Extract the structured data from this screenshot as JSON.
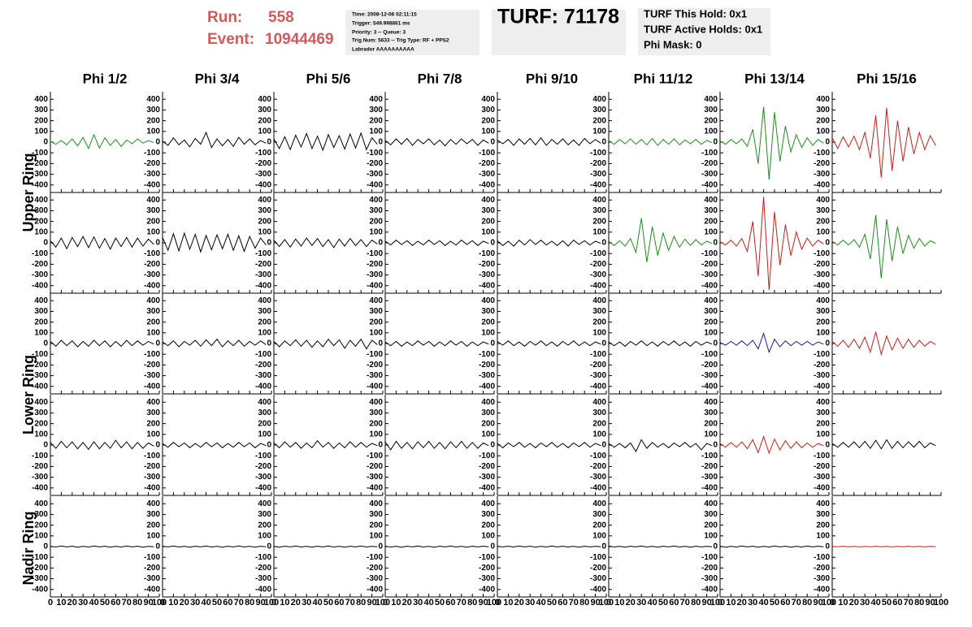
{
  "header": {
    "run_label": "Run:",
    "run": "558",
    "event_label": "Event:",
    "event": "10944469",
    "info": [
      "Time: 2008-12-06 02:11:15",
      "Trigger: 549.998861 ms",
      "Priority: 3 -- Queue: 3",
      "Trig Num: 5633 -- Trig Type: RF + PPS2",
      "Labrador AAAAAAAAAA"
    ],
    "turf": "TURF: 71178",
    "turf_info": [
      "TURF This Hold: 0x1",
      "TURF Active Holds: 0x1",
      "Phi Mask: 0"
    ]
  },
  "columns": [
    "Phi 1/2",
    "Phi 3/4",
    "Phi 5/6",
    "Phi 7/8",
    "Phi 9/10",
    "Phi 11/12",
    "Phi 13/14",
    "Phi 15/16"
  ],
  "rows": [
    "Upper Ring",
    "Lower Ring",
    "Nadir Ring"
  ],
  "axes": {
    "x": [
      0,
      5,
      10,
      15,
      20,
      25,
      30,
      35,
      40,
      45,
      50,
      55,
      60,
      65,
      70,
      75,
      80,
      85,
      90,
      95
    ],
    "xlim": [
      0,
      100
    ],
    "xticks": [
      0,
      10,
      20,
      30,
      40,
      50,
      60,
      70,
      80,
      90,
      100
    ],
    "ylim": [
      -470,
      470
    ],
    "yticks": [
      400,
      300,
      200,
      100,
      0,
      -100,
      -200,
      -300,
      -400
    ]
  },
  "chart_data": [
    {
      "type": "line",
      "color": "#1e8c1e",
      "values": [
        5,
        -20,
        15,
        -25,
        30,
        -35,
        45,
        -60,
        70,
        -55,
        40,
        -30,
        25,
        -40,
        20,
        -15,
        30,
        -10,
        15,
        -5
      ]
    },
    {
      "type": "line",
      "color": "#000000",
      "values": [
        10,
        -30,
        40,
        -25,
        20,
        -45,
        35,
        -20,
        90,
        -50,
        30,
        -35,
        25,
        -40,
        45,
        -20,
        30,
        -25,
        15,
        -10
      ]
    },
    {
      "type": "line",
      "color": "#000000",
      "values": [
        30,
        -60,
        50,
        -70,
        65,
        -45,
        80,
        -60,
        55,
        -75,
        70,
        -50,
        60,
        -65,
        75,
        -55,
        85,
        -70,
        40,
        -20
      ]
    },
    {
      "type": "line",
      "color": "#000000",
      "values": [
        15,
        -25,
        30,
        -20,
        35,
        -30,
        25,
        -15,
        30,
        -25,
        20,
        -35,
        25,
        -20,
        30,
        -15,
        25,
        -30,
        20,
        -10
      ]
    },
    {
      "type": "line",
      "color": "#000000",
      "values": [
        20,
        -15,
        25,
        -30,
        30,
        -20,
        35,
        -25,
        40,
        -30,
        25,
        -20,
        30,
        -25,
        20,
        -30,
        35,
        -15,
        25,
        -10
      ]
    },
    {
      "type": "line",
      "color": "#1e8c1e",
      "values": [
        15,
        -20,
        25,
        -15,
        30,
        -20,
        25,
        -25,
        35,
        -30,
        25,
        -20,
        30,
        -25,
        20,
        -15,
        25,
        -20,
        15,
        -5
      ]
    },
    {
      "type": "line",
      "color": "#1e8c1e",
      "values": [
        10,
        -20,
        25,
        -15,
        30,
        -40,
        120,
        -200,
        330,
        -350,
        280,
        -180,
        150,
        -90,
        70,
        -50,
        40,
        -30,
        25,
        -10
      ]
    },
    {
      "type": "line",
      "color": "#c81e1e",
      "values": [
        40,
        -60,
        50,
        -45,
        55,
        -70,
        90,
        -150,
        250,
        -330,
        320,
        -270,
        200,
        -180,
        140,
        -110,
        90,
        -70,
        60,
        -30
      ]
    },
    {
      "type": "line",
      "color": "#000000",
      "values": [
        20,
        -40,
        45,
        -55,
        50,
        -35,
        60,
        -45,
        55,
        -50,
        40,
        -60,
        45,
        -35,
        50,
        -40,
        45,
        -30,
        35,
        -15
      ]
    },
    {
      "type": "line",
      "color": "#000000",
      "values": [
        50,
        -70,
        85,
        -75,
        90,
        -60,
        80,
        -85,
        70,
        -65,
        75,
        -55,
        80,
        -70,
        65,
        -80,
        60,
        -50,
        45,
        -20
      ]
    },
    {
      "type": "line",
      "color": "#000000",
      "values": [
        25,
        -35,
        30,
        -40,
        35,
        -30,
        45,
        -25,
        40,
        -35,
        30,
        -45,
        35,
        -30,
        40,
        -25,
        30,
        -35,
        25,
        -10
      ]
    },
    {
      "type": "line",
      "color": "#000000",
      "values": [
        15,
        -20,
        25,
        -15,
        20,
        -25,
        15,
        -20,
        25,
        -15,
        20,
        -25,
        15,
        -20,
        25,
        -15,
        20,
        -25,
        15,
        -5
      ]
    },
    {
      "type": "line",
      "color": "#000000",
      "values": [
        20,
        -25,
        15,
        -30,
        25,
        -20,
        30,
        -15,
        25,
        -20,
        15,
        -25,
        20,
        -30,
        25,
        -15,
        20,
        -20,
        15,
        -5
      ]
    },
    {
      "type": "line",
      "color": "#1e8c1e",
      "values": [
        15,
        -25,
        20,
        -30,
        40,
        -90,
        230,
        -180,
        150,
        -120,
        90,
        -70,
        60,
        -40,
        35,
        -25,
        30,
        -20,
        15,
        -5
      ]
    },
    {
      "type": "line",
      "color": "#c81e1e",
      "values": [
        10,
        -20,
        25,
        -30,
        40,
        -80,
        200,
        -310,
        430,
        -440,
        290,
        -210,
        170,
        -120,
        100,
        -60,
        45,
        -30,
        25,
        -10
      ]
    },
    {
      "type": "line",
      "color": "#1e8c1e",
      "values": [
        15,
        -20,
        25,
        -20,
        30,
        -40,
        80,
        -150,
        260,
        -330,
        220,
        -170,
        150,
        -100,
        70,
        -50,
        40,
        -30,
        20,
        -5
      ]
    },
    {
      "type": "line",
      "color": "#000000",
      "values": [
        20,
        -25,
        30,
        -20,
        25,
        -30,
        20,
        -25,
        30,
        -20,
        25,
        -30,
        20,
        -25,
        30,
        -20,
        25,
        -15,
        20,
        -5
      ]
    },
    {
      "type": "line",
      "color": "#000000",
      "values": [
        15,
        -20,
        25,
        -30,
        20,
        -15,
        30,
        -25,
        35,
        -20,
        40,
        -30,
        25,
        -20,
        30,
        -25,
        20,
        -15,
        25,
        -10
      ]
    },
    {
      "type": "line",
      "color": "#000000",
      "values": [
        20,
        -30,
        25,
        -20,
        35,
        -25,
        30,
        -35,
        25,
        -30,
        40,
        -20,
        35,
        -45,
        30,
        -25,
        40,
        -50,
        30,
        -10
      ]
    },
    {
      "type": "line",
      "color": "#000000",
      "values": [
        15,
        -20,
        20,
        -25,
        15,
        -20,
        25,
        -15,
        20,
        -25,
        15,
        -20,
        25,
        -15,
        20,
        -25,
        15,
        -20,
        15,
        -5
      ]
    },
    {
      "type": "line",
      "color": "#000000",
      "values": [
        20,
        -15,
        25,
        -20,
        15,
        -25,
        20,
        -15,
        25,
        -20,
        15,
        -25,
        20,
        -15,
        25,
        -20,
        15,
        -20,
        15,
        -5
      ]
    },
    {
      "type": "line",
      "color": "#000000",
      "values": [
        15,
        -20,
        15,
        -25,
        20,
        -15,
        25,
        -20,
        15,
        -25,
        20,
        -15,
        25,
        -20,
        15,
        -25,
        20,
        -15,
        15,
        -5
      ]
    },
    {
      "type": "line",
      "color": "#1a1a8c",
      "values": [
        10,
        -15,
        20,
        -15,
        25,
        -20,
        30,
        -50,
        95,
        -80,
        40,
        -30,
        25,
        -20,
        20,
        -15,
        20,
        -15,
        15,
        -5
      ]
    },
    {
      "type": "line",
      "color": "#c81e1e",
      "values": [
        20,
        -25,
        30,
        -35,
        40,
        -45,
        60,
        -80,
        110,
        -100,
        70,
        -60,
        50,
        -45,
        40,
        -35,
        30,
        -25,
        20,
        -10
      ]
    },
    {
      "type": "line",
      "color": "#000000",
      "values": [
        25,
        -30,
        35,
        -25,
        30,
        -35,
        25,
        -40,
        30,
        -35,
        25,
        -30,
        45,
        -25,
        30,
        -35,
        25,
        -30,
        20,
        -10
      ]
    },
    {
      "type": "line",
      "color": "#000000",
      "values": [
        15,
        -20,
        25,
        -15,
        20,
        -25,
        15,
        -20,
        25,
        -15,
        20,
        -25,
        15,
        -20,
        25,
        -15,
        20,
        -25,
        15,
        -5
      ]
    },
    {
      "type": "line",
      "color": "#000000",
      "values": [
        20,
        -25,
        30,
        -20,
        25,
        -30,
        20,
        -25,
        40,
        -20,
        25,
        -30,
        20,
        -25,
        30,
        -20,
        25,
        -20,
        15,
        -5
      ]
    },
    {
      "type": "line",
      "color": "#000000",
      "values": [
        30,
        -45,
        35,
        -30,
        25,
        -35,
        30,
        -25,
        35,
        -30,
        25,
        -35,
        30,
        -25,
        35,
        -30,
        25,
        -30,
        20,
        -5
      ]
    },
    {
      "type": "line",
      "color": "#000000",
      "values": [
        15,
        -25,
        20,
        -15,
        25,
        -20,
        15,
        -25,
        20,
        -15,
        25,
        -20,
        15,
        -25,
        20,
        -15,
        25,
        -20,
        15,
        -5
      ]
    },
    {
      "type": "line",
      "color": "#000000",
      "values": [
        15,
        -20,
        15,
        -25,
        20,
        -60,
        50,
        -30,
        25,
        -20,
        15,
        -25,
        20,
        -15,
        25,
        -20,
        15,
        -45,
        15,
        -5
      ]
    },
    {
      "type": "line",
      "color": "#c81e1e",
      "values": [
        15,
        -20,
        25,
        -20,
        30,
        -35,
        50,
        -70,
        80,
        -75,
        55,
        -45,
        40,
        -30,
        30,
        -25,
        20,
        -20,
        15,
        -5
      ]
    },
    {
      "type": "line",
      "color": "#000000",
      "values": [
        15,
        -20,
        25,
        -20,
        30,
        -25,
        35,
        -30,
        45,
        -35,
        50,
        -30,
        35,
        -25,
        30,
        -20,
        35,
        -25,
        20,
        -5
      ]
    },
    {
      "type": "line",
      "color": "#000000",
      "values": [
        3,
        -4,
        5,
        -3,
        4,
        -5,
        3,
        -4,
        5,
        -3,
        4,
        -5,
        3,
        -4,
        5,
        -3,
        4,
        -5,
        3,
        -2
      ]
    },
    {
      "type": "line",
      "color": "#000000",
      "values": [
        4,
        -3,
        5,
        -4,
        3,
        -5,
        4,
        -3,
        5,
        -4,
        3,
        -5,
        4,
        -3,
        5,
        -4,
        3,
        -5,
        4,
        -2
      ]
    },
    {
      "type": "line",
      "color": "#000000",
      "values": [
        3,
        -5,
        4,
        -3,
        5,
        -4,
        3,
        -5,
        4,
        -3,
        5,
        -4,
        3,
        -5,
        4,
        -3,
        5,
        -4,
        3,
        -2
      ]
    },
    {
      "type": "line",
      "color": "#000000",
      "values": [
        4,
        -4,
        3,
        -5,
        4,
        -3,
        5,
        -4,
        3,
        -5,
        4,
        -3,
        5,
        -4,
        3,
        -5,
        4,
        -3,
        4,
        -2
      ]
    },
    {
      "type": "line",
      "color": "#000000",
      "values": [
        3,
        -3,
        4,
        -4,
        5,
        -3,
        4,
        -5,
        3,
        -4,
        5,
        -3,
        4,
        -4,
        3,
        -5,
        4,
        -3,
        3,
        -2
      ]
    },
    {
      "type": "line",
      "color": "#000000",
      "values": [
        5,
        -4,
        3,
        -5,
        4,
        -3,
        5,
        -4,
        3,
        -5,
        4,
        -3,
        5,
        -4,
        3,
        -5,
        4,
        -3,
        3,
        -2
      ]
    },
    {
      "type": "line",
      "color": "#000000",
      "values": [
        4,
        -5,
        3,
        -4,
        5,
        -3,
        4,
        -5,
        3,
        -4,
        5,
        -3,
        4,
        -5,
        3,
        -4,
        5,
        -3,
        4,
        -2
      ]
    },
    {
      "type": "line",
      "color": "#c81e1e",
      "values": [
        2,
        -2,
        3,
        -2,
        2,
        -3,
        2,
        -2,
        3,
        -2,
        2,
        -3,
        2,
        -2,
        3,
        -2,
        2,
        -3,
        2,
        -1
      ]
    }
  ]
}
